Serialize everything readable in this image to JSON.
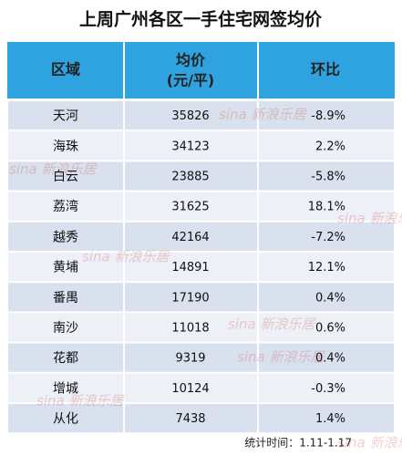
{
  "title": "上周广州各区一手住宅网签均价",
  "table": {
    "header": [
      "区域",
      [
        "均价",
        "(元/平)"
      ],
      "环比"
    ],
    "rows": [
      [
        "天河",
        "35826",
        "-8.9%"
      ],
      [
        "海珠",
        "34123",
        "2.2%"
      ],
      [
        "白云",
        "23885",
        "-5.8%"
      ],
      [
        "荔湾",
        "31625",
        "18.1%"
      ],
      [
        "越秀",
        "42164",
        "-7.2%"
      ],
      [
        "黄埔",
        "14891",
        "12.1%"
      ],
      [
        "番禺",
        "17190",
        "0.4%"
      ],
      [
        "南沙",
        "11018",
        "0.6%"
      ],
      [
        "花都",
        "9319",
        "0.4%"
      ],
      [
        "增城",
        "10124",
        "-0.3%"
      ],
      [
        "从化",
        "7438",
        "1.4%"
      ]
    ]
  },
  "footer": "统计时间：1.11-1.17",
  "watermark": "sina 新浪乐居"
}
